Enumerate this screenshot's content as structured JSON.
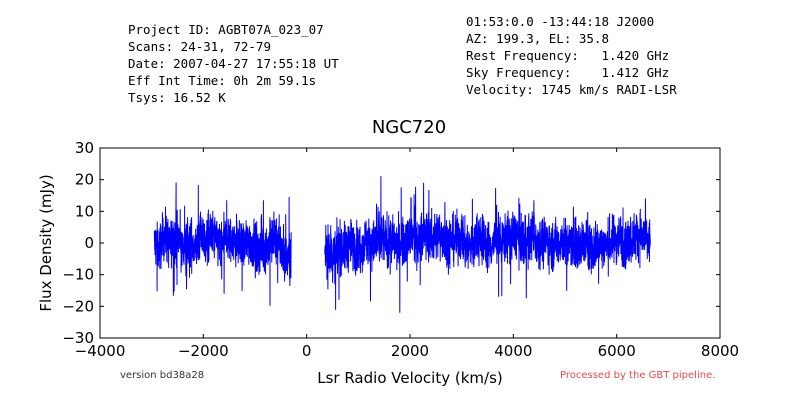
{
  "header_left": [
    "Project ID: AGBT07A_023_07",
    "Scans: 24-31, 72-79",
    "Date: 2007-04-27 17:55:18 UT",
    "Eff Int Time: 0h 2m 59.1s",
    "Tsys: 16.52 K"
  ],
  "header_right": [
    "01:53:0.0 -13:44:18 J2000",
    "AZ: 199.3, EL: 35.8",
    "Rest Frequency:   1.420 GHz",
    "Sky Frequency:    1.412 GHz",
    "Velocity: 1745 km/s RADI-LSR"
  ],
  "footer": {
    "version": "version bd38a28",
    "processed": "Processed by the GBT pipeline.",
    "processed_color": "#e84a4a"
  },
  "chart_data": {
    "type": "line",
    "title": "NGC720",
    "xlabel": "Lsr Radio Velocity (km/s)",
    "ylabel": "Flux Density (mJy)",
    "xlim": [
      -4000,
      8000
    ],
    "ylim": [
      -30,
      30
    ],
    "xticks": [
      -4000,
      -2000,
      0,
      2000,
      4000,
      6000,
      8000
    ],
    "yticks": [
      -30,
      -20,
      -10,
      0,
      10,
      20,
      30
    ],
    "xtick_labels": [
      "−4000",
      "−2000",
      "0",
      "2000",
      "4000",
      "6000",
      "8000"
    ],
    "ytick_labels": [
      "−30",
      "−20",
      "−10",
      "0",
      "10",
      "20",
      "30"
    ],
    "grid": false,
    "line_color": "#0000ff",
    "series": [
      {
        "segments": [
          {
            "x": [
              -2950,
              -2850,
              -2750,
              -2650,
              -2550,
              -2450,
              -2350,
              -2250,
              -2150,
              -2050,
              -1950,
              -1850,
              -1750,
              -1650,
              -1550,
              -1450,
              -1350,
              -1250,
              -1150,
              -1050,
              -950,
              -850,
              -750,
              -650,
              -550,
              -450,
              -350,
              -300
            ],
            "y": [
              0,
              -2,
              3,
              -1,
              2,
              0,
              -3,
              1,
              -2,
              2,
              0,
              3,
              1,
              -1,
              2,
              0,
              1,
              -2,
              1,
              0,
              -3,
              -1,
              -2,
              2,
              0,
              -4,
              -5,
              -3
            ],
            "amplitude": 7
          },
          {
            "x": [
              350,
              450,
              550,
              650,
              750,
              850,
              950,
              1050,
              1150,
              1250,
              1350,
              1450,
              1550,
              1650,
              1750,
              1850,
              1950,
              2050,
              2150,
              2250,
              2350,
              2450,
              2550,
              2650,
              2750,
              2850,
              2950,
              3050,
              3150,
              3250,
              3350,
              3450,
              3550,
              3650,
              3750,
              3850,
              3950,
              4050,
              4150,
              4250,
              4350,
              4450,
              4550,
              4650,
              4750,
              4850,
              4950,
              5050,
              5150,
              5250,
              5350,
              5450,
              5550,
              5650,
              5750,
              5850,
              5950,
              6050,
              6150,
              6250,
              6350,
              6450,
              6550,
              6650
            ],
            "y": [
              -3,
              -2,
              -4,
              -1,
              -2,
              0,
              -2,
              -1,
              1,
              0,
              -1,
              2,
              0,
              1,
              -1,
              0,
              1,
              2,
              0,
              3,
              2,
              1,
              3,
              2,
              0,
              1,
              2,
              0,
              -1,
              1,
              2,
              0,
              -1,
              1,
              0,
              2,
              1,
              3,
              1,
              0,
              2,
              1,
              0,
              1,
              -1,
              0,
              1,
              -1,
              0,
              -2,
              0,
              -1,
              -2,
              0,
              -1,
              0,
              1,
              2,
              0,
              1,
              2,
              3,
              1,
              0
            ],
            "amplitude": 7
          }
        ]
      }
    ]
  }
}
